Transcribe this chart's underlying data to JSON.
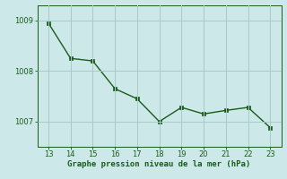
{
  "x": [
    13,
    14,
    15,
    16,
    17,
    18,
    19,
    20,
    21,
    22,
    23
  ],
  "y": [
    1008.95,
    1008.25,
    1008.2,
    1007.65,
    1007.45,
    1007.0,
    1007.28,
    1007.15,
    1007.22,
    1007.28,
    1006.88
  ],
  "line_color": "#1a5c1a",
  "marker": "s",
  "marker_size": 2.2,
  "line_width": 1.0,
  "bg_color": "#cce8e8",
  "plot_bg_color": "#cce8e8",
  "grid_color": "#aacaca",
  "xlabel": "Graphe pression niveau de la mer (hPa)",
  "xlabel_color": "#1a5c1a",
  "xlabel_fontsize": 6.5,
  "tick_color": "#1a5c1a",
  "tick_fontsize": 6,
  "xlim": [
    12.5,
    23.5
  ],
  "ylim": [
    1006.5,
    1009.3
  ],
  "yticks": [
    1007,
    1008,
    1009
  ],
  "xticks": [
    13,
    14,
    15,
    16,
    17,
    18,
    19,
    20,
    21,
    22,
    23
  ]
}
